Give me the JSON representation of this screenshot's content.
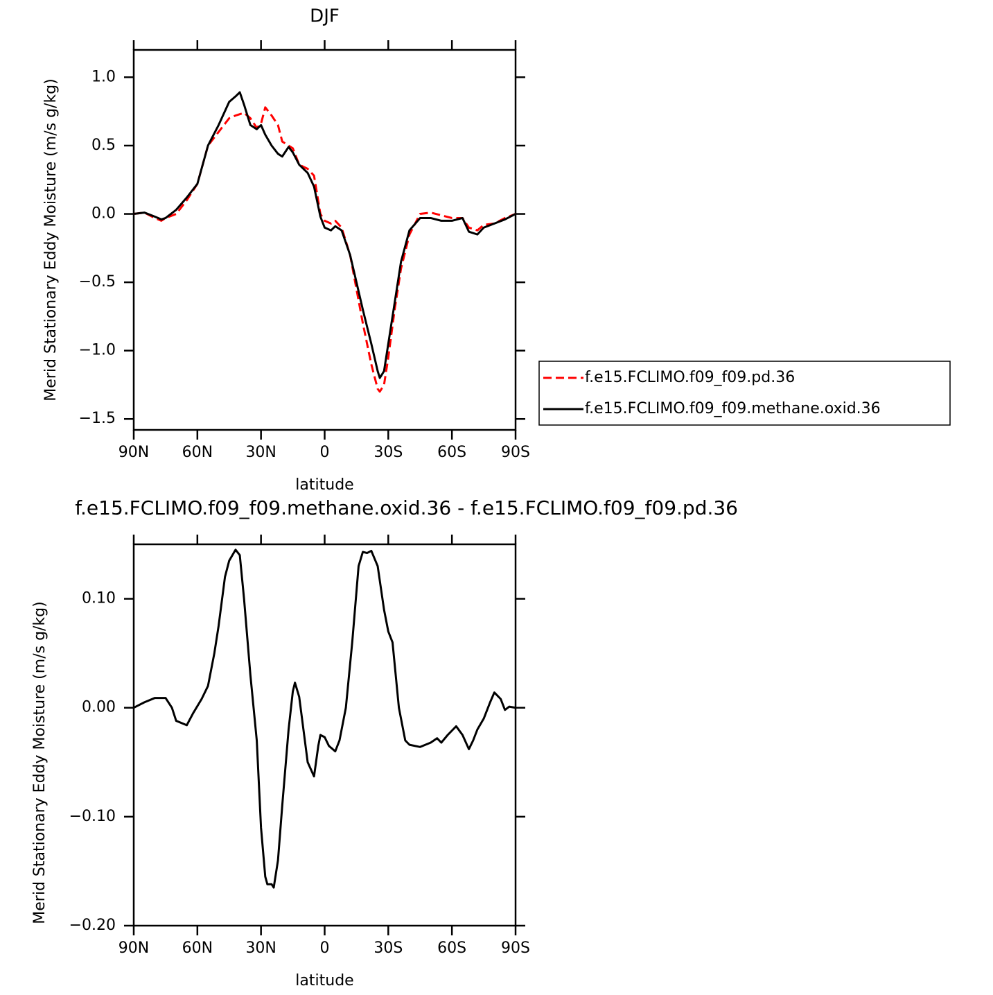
{
  "chart_data": [
    {
      "type": "line",
      "title": "DJF",
      "xlabel": "latitude",
      "ylabel": "Merid Stationary Eddy Moisture (m/s g/kg)",
      "x": [
        90,
        85,
        80,
        77,
        75,
        70,
        65,
        60,
        55,
        50,
        45,
        42,
        40,
        38,
        35,
        32,
        30,
        28,
        25,
        22,
        20,
        17,
        15,
        12,
        8,
        5,
        2,
        0,
        -3,
        -5,
        -8,
        -12,
        -15,
        -18,
        -22,
        -25,
        -26,
        -28,
        -30,
        -33,
        -36,
        -40,
        -45,
        -50,
        -55,
        -60,
        -65,
        -68,
        -72,
        -75,
        -80,
        -85,
        -90
      ],
      "series": [
        {
          "name": "f.e15.FCLIMO.f09_f09.pd.36",
          "color": "#ff0000",
          "line_style": "dashed",
          "values": [
            0.0,
            0.01,
            -0.03,
            -0.05,
            -0.03,
            0.0,
            0.1,
            0.22,
            0.5,
            0.6,
            0.7,
            0.72,
            0.73,
            0.74,
            0.7,
            0.63,
            0.66,
            0.78,
            0.72,
            0.65,
            0.53,
            0.5,
            0.48,
            0.36,
            0.33,
            0.28,
            0.0,
            -0.05,
            -0.07,
            -0.05,
            -0.1,
            -0.3,
            -0.55,
            -0.8,
            -1.1,
            -1.28,
            -1.3,
            -1.25,
            -1.05,
            -0.7,
            -0.4,
            -0.15,
            0.0,
            0.01,
            -0.01,
            -0.03,
            -0.03,
            -0.1,
            -0.12,
            -0.08,
            -0.07,
            -0.03,
            0.0
          ]
        },
        {
          "name": "f.e15.FCLIMO.f09_f09.methane.oxid.36",
          "color": "#000000",
          "line_style": "solid",
          "values": [
            0.0,
            0.01,
            -0.02,
            -0.04,
            -0.03,
            0.03,
            0.12,
            0.22,
            0.5,
            0.65,
            0.82,
            0.86,
            0.89,
            0.8,
            0.65,
            0.62,
            0.65,
            0.58,
            0.5,
            0.44,
            0.42,
            0.49,
            0.45,
            0.36,
            0.3,
            0.2,
            -0.02,
            -0.1,
            -0.12,
            -0.09,
            -0.12,
            -0.3,
            -0.5,
            -0.7,
            -0.95,
            -1.15,
            -1.2,
            -1.15,
            -0.95,
            -0.65,
            -0.35,
            -0.12,
            -0.03,
            -0.03,
            -0.05,
            -0.05,
            -0.03,
            -0.13,
            -0.15,
            -0.1,
            -0.07,
            -0.04,
            0.0
          ]
        }
      ],
      "xlim": [
        90,
        -90
      ],
      "xticks": [
        {
          "value": 90,
          "label": "90N"
        },
        {
          "value": 60,
          "label": "60N"
        },
        {
          "value": 30,
          "label": "30N"
        },
        0,
        {
          "value": -30,
          "label": "30S"
        },
        {
          "value": -60,
          "label": "60S"
        },
        {
          "value": -90,
          "label": "90S"
        }
      ],
      "ylim": [
        -1.58,
        1.2
      ],
      "yticks": [
        {
          "value": 1,
          "label": "1.0"
        },
        0.5,
        {
          "value": 0,
          "label": "0.0"
        },
        {
          "value": -0.5,
          "label": "−0.5"
        },
        {
          "value": -1,
          "label": "−1.0"
        },
        {
          "value": -1.5,
          "label": "−1.5"
        }
      ],
      "legend": "right"
    },
    {
      "type": "line",
      "title": "f.e15.FCLIMO.f09_f09.methane.oxid.36 - f.e15.FCLIMO.f09_f09.pd.36",
      "xlabel": "latitude",
      "ylabel": "Merid Stationary Eddy Moisture (m/s g/kg)",
      "x": [
        90,
        85,
        80,
        75,
        72,
        70,
        65,
        62,
        58,
        55,
        52,
        50,
        47,
        45,
        42,
        40,
        38,
        35,
        32,
        30,
        28,
        27,
        25,
        24,
        22,
        20,
        17,
        15,
        14,
        12,
        10,
        8,
        5,
        3,
        2,
        0,
        -2,
        -5,
        -7,
        -10,
        -13,
        -16,
        -18,
        -20,
        -22,
        -25,
        -28,
        -30,
        -32,
        -35,
        -38,
        -40,
        -45,
        -50,
        -53,
        -55,
        -58,
        -62,
        -65,
        -68,
        -70,
        -72,
        -75,
        -78,
        -80,
        -83,
        -85,
        -87,
        -90
      ],
      "values": [
        0.0,
        0.005,
        0.009,
        0.009,
        0.0,
        -0.012,
        -0.016,
        -0.005,
        0.008,
        0.02,
        0.05,
        0.075,
        0.12,
        0.135,
        0.145,
        0.14,
        0.1,
        0.03,
        -0.03,
        -0.11,
        -0.155,
        -0.162,
        -0.162,
        -0.165,
        -0.14,
        -0.09,
        -0.02,
        0.015,
        0.023,
        0.01,
        -0.02,
        -0.05,
        -0.063,
        -0.035,
        -0.025,
        -0.027,
        -0.035,
        -0.04,
        -0.03,
        0.0,
        0.06,
        0.13,
        0.143,
        0.142,
        0.144,
        0.13,
        0.09,
        0.07,
        0.06,
        0.0,
        -0.03,
        -0.034,
        -0.036,
        -0.032,
        -0.028,
        -0.032,
        -0.025,
        -0.017,
        -0.025,
        -0.038,
        -0.03,
        -0.02,
        -0.01,
        0.005,
        0.014,
        0.008,
        -0.002,
        0.001,
        0.0
      ],
      "color": "#000000",
      "xlim": [
        90,
        -90
      ],
      "xticks": [
        {
          "value": 90,
          "label": "90N"
        },
        {
          "value": 60,
          "label": "60N"
        },
        {
          "value": 30,
          "label": "30N"
        },
        0,
        {
          "value": -30,
          "label": "30S"
        },
        {
          "value": -60,
          "label": "60S"
        },
        {
          "value": -90,
          "label": "90S"
        }
      ],
      "ylim": [
        -0.2,
        0.15
      ],
      "yticks": [
        {
          "value": 0.1,
          "label": "0.10"
        },
        {
          "value": 0,
          "label": "0.00"
        },
        {
          "value": -0.1,
          "label": "−0.10"
        },
        {
          "value": -0.2,
          "label": "−0.20"
        }
      ]
    }
  ]
}
